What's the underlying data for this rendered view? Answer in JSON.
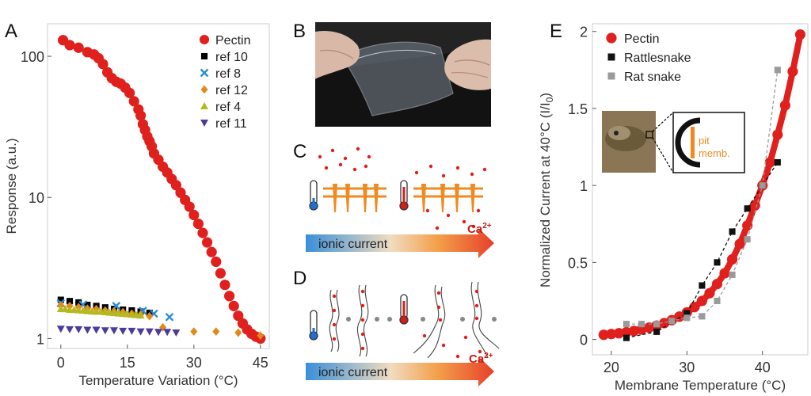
{
  "panels": {
    "a": "A",
    "b": "B",
    "c": "C",
    "d": "D",
    "e": "E"
  },
  "colors": {
    "pectin": "#e0201d",
    "ref10": "#000000",
    "ref8": "#2a8fd0",
    "ref12": "#e08a1a",
    "ref4": "#b5b820",
    "ref11": "#4a3c9c",
    "rattlesnake": "#111111",
    "ratsnake": "#9a9a9a",
    "orange": "#f08a20"
  },
  "schematic": {
    "ionic_current_label": "ionic current",
    "ion_label": "Ca",
    "ion_charge": "2+",
    "inset_pit_label": "pit",
    "inset_memb_label": "memb."
  },
  "chart_data": [
    {
      "type": "scatter",
      "panel": "A",
      "xlabel": "Temperature Variation (°C)",
      "ylabel": "Response (a.u.)",
      "xlim": [
        -3,
        47
      ],
      "ylim": [
        0.85,
        170
      ],
      "yscale": "log",
      "xticks": [
        0,
        15,
        30,
        45
      ],
      "yticks": [
        1,
        10,
        100
      ],
      "legend_position": "top-right",
      "series": [
        {
          "name": "Pectin",
          "marker": "circle",
          "x": [
            0.5,
            2,
            4,
            6,
            7.5,
            8.5,
            9.5,
            10.5,
            11.5,
            12.5,
            13.5,
            14.5,
            15.5,
            16.5,
            17.5,
            18,
            18.5,
            19,
            19.5,
            20,
            20.5,
            21,
            22,
            23,
            24,
            25,
            26,
            27,
            28,
            29,
            30,
            31,
            32,
            33,
            34,
            35,
            36,
            37,
            38,
            39,
            40,
            41,
            42,
            43,
            44,
            45
          ],
          "y": [
            130,
            120,
            115,
            107,
            103,
            97,
            88,
            77,
            70,
            66,
            64,
            60,
            55,
            48,
            42,
            38,
            33,
            30,
            27,
            25,
            23,
            20.5,
            18.5,
            16.5,
            15,
            13.5,
            12.2,
            10.8,
            9.6,
            8.6,
            7.5,
            6.5,
            5.6,
            4.8,
            4.1,
            3.5,
            2.9,
            2.4,
            2.0,
            1.7,
            1.45,
            1.28,
            1.16,
            1.08,
            1.03,
            1.0
          ]
        },
        {
          "name": "ref 10",
          "marker": "square",
          "x": [
            0,
            2,
            4,
            6,
            8,
            10,
            12,
            14,
            16,
            18,
            20
          ],
          "y": [
            1.88,
            1.84,
            1.8,
            1.73,
            1.7,
            1.66,
            1.62,
            1.6,
            1.58,
            1.55,
            1.52
          ]
        },
        {
          "name": "ref 8",
          "marker": "x",
          "x": [
            0,
            5,
            12.5,
            18.5,
            21,
            24.5
          ],
          "y": [
            1.78,
            1.74,
            1.7,
            1.57,
            1.5,
            1.42
          ]
        },
        {
          "name": "ref 12",
          "marker": "diamond",
          "x": [
            0,
            2,
            4,
            6,
            8,
            10,
            12,
            14,
            16,
            18,
            20,
            23,
            30,
            35,
            40,
            45
          ],
          "y": [
            1.72,
            1.7,
            1.67,
            1.63,
            1.62,
            1.58,
            1.56,
            1.54,
            1.5,
            1.48,
            1.44,
            1.2,
            1.12,
            1.12,
            1.1,
            1.05
          ]
        },
        {
          "name": "ref 4",
          "marker": "triangle-up",
          "x": [
            0,
            1,
            2,
            3,
            4,
            5,
            6,
            7,
            8,
            9,
            10,
            11,
            12,
            13,
            14,
            15,
            16,
            17,
            18
          ],
          "y": [
            1.62,
            1.62,
            1.6,
            1.6,
            1.59,
            1.58,
            1.57,
            1.56,
            1.55,
            1.55,
            1.54,
            1.53,
            1.52,
            1.51,
            1.5,
            1.49,
            1.48,
            1.47,
            1.46
          ]
        },
        {
          "name": "ref 11",
          "marker": "triangle-down",
          "x": [
            0,
            2,
            4,
            6,
            8,
            10,
            12,
            14,
            16,
            18,
            20,
            22,
            24,
            26
          ],
          "y": [
            1.17,
            1.16,
            1.16,
            1.15,
            1.15,
            1.14,
            1.14,
            1.13,
            1.13,
            1.12,
            1.12,
            1.11,
            1.11,
            1.1
          ]
        }
      ]
    },
    {
      "type": "scatter",
      "panel": "E",
      "xlabel": "Membrane Temperature (°C)",
      "ylabel": "Normalized Current at 40°C (I/I",
      "ylabel_sub": "0",
      "ylabel_end": ")",
      "xlim": [
        17.5,
        46
      ],
      "ylim": [
        -0.1,
        2.05
      ],
      "xticks": [
        20,
        30,
        40
      ],
      "yticks": [
        0,
        0.5,
        1,
        1.5,
        2
      ],
      "legend_position": "top-left",
      "series": [
        {
          "name": "Pectin",
          "marker": "circle",
          "curve": "exponential",
          "x": [
            19,
            20,
            21,
            22,
            23,
            24,
            25,
            26,
            27,
            28,
            29,
            30,
            31,
            32,
            33,
            34,
            35,
            36,
            37,
            38,
            39,
            40,
            41,
            42,
            43,
            44,
            45
          ],
          "y": [
            0.03,
            0.035,
            0.04,
            0.047,
            0.055,
            0.065,
            0.077,
            0.09,
            0.106,
            0.125,
            0.148,
            0.175,
            0.21,
            0.25,
            0.3,
            0.36,
            0.43,
            0.52,
            0.62,
            0.74,
            0.87,
            1.0,
            1.15,
            1.33,
            1.52,
            1.74,
            1.98
          ]
        },
        {
          "name": "Rattlesnake",
          "marker": "square",
          "x": [
            22,
            26,
            30,
            32,
            34,
            36,
            38,
            40,
            42
          ],
          "y": [
            0.01,
            0.05,
            0.17,
            0.35,
            0.5,
            0.7,
            0.85,
            1.0,
            1.15
          ]
        },
        {
          "name": "Rat snake",
          "marker": "square",
          "x": [
            22,
            24,
            26,
            28,
            30,
            32,
            34,
            36,
            38,
            40,
            42
          ],
          "y": [
            0.1,
            0.1,
            0.1,
            0.12,
            0.14,
            0.15,
            0.25,
            0.42,
            0.65,
            1.0,
            1.75
          ]
        }
      ]
    }
  ]
}
